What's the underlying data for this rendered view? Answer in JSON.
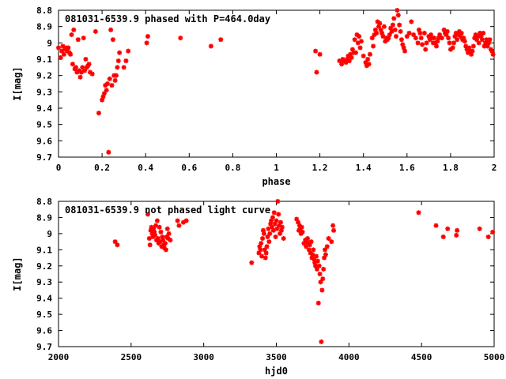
{
  "chart_data": [
    {
      "type": "scatter",
      "title": "081031-6539.9 phased with P=464.0day",
      "xlabel": "phase",
      "ylabel": "I[mag]",
      "xlim": [
        0,
        2
      ],
      "ylim": [
        8.8,
        9.7
      ],
      "y_inverted": true,
      "grid": false,
      "color": "#ff0000",
      "xticks": [
        "0",
        "0.2",
        "0.4",
        "0.6",
        "0.8",
        "1",
        "1.2",
        "1.4",
        "1.6",
        "1.8",
        "2"
      ],
      "xtick_values": [
        0,
        0.2,
        0.4,
        0.6,
        0.8,
        1.0,
        1.2,
        1.4,
        1.6,
        1.8,
        2.0
      ],
      "yticks": [
        "8.8",
        "8.9",
        "9",
        "9.1",
        "9.2",
        "9.3",
        "9.4",
        "9.5",
        "9.6",
        "9.7"
      ],
      "ytick_values": [
        8.8,
        8.9,
        9.0,
        9.1,
        9.2,
        9.3,
        9.4,
        9.5,
        9.6,
        9.7
      ],
      "points": [
        [
          0.0,
          9.03
        ],
        [
          0.01,
          9.09
        ],
        [
          0.015,
          9.05
        ],
        [
          0.02,
          9.02
        ],
        [
          0.025,
          9.07
        ],
        [
          0.03,
          9.04
        ],
        [
          0.035,
          9.03
        ],
        [
          0.04,
          9.05
        ],
        [
          0.045,
          9.03
        ],
        [
          0.05,
          9.06
        ],
        [
          0.055,
          9.07
        ],
        [
          0.06,
          8.95
        ],
        [
          0.065,
          9.13
        ],
        [
          0.07,
          8.92
        ],
        [
          0.075,
          9.16
        ],
        [
          0.08,
          9.15
        ],
        [
          0.085,
          9.18
        ],
        [
          0.09,
          8.98
        ],
        [
          0.095,
          9.17
        ],
        [
          0.1,
          9.21
        ],
        [
          0.105,
          9.18
        ],
        [
          0.11,
          9.15
        ],
        [
          0.115,
          8.97
        ],
        [
          0.12,
          9.17
        ],
        [
          0.125,
          9.1
        ],
        [
          0.13,
          9.15
        ],
        [
          0.135,
          9.14
        ],
        [
          0.14,
          9.13
        ],
        [
          0.145,
          9.18
        ],
        [
          0.155,
          9.19
        ],
        [
          0.17,
          8.93
        ],
        [
          0.185,
          9.43
        ],
        [
          0.2,
          9.35
        ],
        [
          0.205,
          9.33
        ],
        [
          0.21,
          9.31
        ],
        [
          0.215,
          9.26
        ],
        [
          0.22,
          9.29
        ],
        [
          0.225,
          9.25
        ],
        [
          0.23,
          9.67
        ],
        [
          0.235,
          9.22
        ],
        [
          0.24,
          8.92
        ],
        [
          0.245,
          9.26
        ],
        [
          0.25,
          8.98
        ],
        [
          0.255,
          9.2
        ],
        [
          0.26,
          9.23
        ],
        [
          0.265,
          9.2
        ],
        [
          0.27,
          9.15
        ],
        [
          0.275,
          9.11
        ],
        [
          0.28,
          9.06
        ],
        [
          0.3,
          9.15
        ],
        [
          0.31,
          9.11
        ],
        [
          0.32,
          9.05
        ],
        [
          0.405,
          9.0
        ],
        [
          0.41,
          8.96
        ],
        [
          0.56,
          8.97
        ],
        [
          0.7,
          9.02
        ],
        [
          0.745,
          8.98
        ],
        [
          1.18,
          9.05
        ],
        [
          1.185,
          9.18
        ],
        [
          1.2,
          9.07
        ],
        [
          1.29,
          9.11
        ],
        [
          1.3,
          9.13
        ],
        [
          1.305,
          9.1
        ],
        [
          1.31,
          9.11
        ],
        [
          1.32,
          9.12
        ],
        [
          1.325,
          9.1
        ],
        [
          1.33,
          9.08
        ],
        [
          1.335,
          9.11
        ],
        [
          1.34,
          9.07
        ],
        [
          1.345,
          9.09
        ],
        [
          1.35,
          9.04
        ],
        [
          1.355,
          9.06
        ],
        [
          1.36,
          8.98
        ],
        [
          1.365,
          9.06
        ],
        [
          1.37,
          8.95
        ],
        [
          1.375,
          9.0
        ],
        [
          1.38,
          8.96
        ],
        [
          1.385,
          9.03
        ],
        [
          1.39,
          8.99
        ],
        [
          1.4,
          9.08
        ],
        [
          1.41,
          9.12
        ],
        [
          1.415,
          9.14
        ],
        [
          1.42,
          9.1
        ],
        [
          1.425,
          9.13
        ],
        [
          1.43,
          9.07
        ],
        [
          1.44,
          8.97
        ],
        [
          1.445,
          9.02
        ],
        [
          1.45,
          8.95
        ],
        [
          1.455,
          8.92
        ],
        [
          1.46,
          8.94
        ],
        [
          1.465,
          8.87
        ],
        [
          1.47,
          8.9
        ],
        [
          1.475,
          8.88
        ],
        [
          1.48,
          8.92
        ],
        [
          1.485,
          8.94
        ],
        [
          1.49,
          8.96
        ],
        [
          1.495,
          8.9
        ],
        [
          1.5,
          8.99
        ],
        [
          1.505,
          8.97
        ],
        [
          1.51,
          8.98
        ],
        [
          1.515,
          8.97
        ],
        [
          1.52,
          8.95
        ],
        [
          1.525,
          8.91
        ],
        [
          1.53,
          8.93
        ],
        [
          1.535,
          8.89
        ],
        [
          1.54,
          8.85
        ],
        [
          1.545,
          8.92
        ],
        [
          1.55,
          8.96
        ],
        [
          1.555,
          8.8
        ],
        [
          1.56,
          8.83
        ],
        [
          1.565,
          8.89
        ],
        [
          1.57,
          8.93
        ],
        [
          1.575,
          8.98
        ],
        [
          1.58,
          9.01
        ],
        [
          1.585,
          9.03
        ],
        [
          1.59,
          9.05
        ],
        [
          1.6,
          8.96
        ],
        [
          1.61,
          8.94
        ],
        [
          1.62,
          8.87
        ],
        [
          1.63,
          8.95
        ],
        [
          1.64,
          8.97
        ],
        [
          1.65,
          9.0
        ],
        [
          1.655,
          8.92
        ],
        [
          1.66,
          8.94
        ],
        [
          1.665,
          8.97
        ],
        [
          1.67,
          9.01
        ],
        [
          1.68,
          8.94
        ],
        [
          1.685,
          9.04
        ],
        [
          1.69,
          9.0
        ],
        [
          1.7,
          8.96
        ],
        [
          1.705,
          8.98
        ],
        [
          1.71,
          8.95
        ],
        [
          1.715,
          8.97
        ],
        [
          1.72,
          9.0
        ],
        [
          1.725,
          8.97
        ],
        [
          1.73,
          9.0
        ],
        [
          1.735,
          9.02
        ],
        [
          1.74,
          8.99
        ],
        [
          1.745,
          8.97
        ],
        [
          1.75,
          8.95
        ],
        [
          1.76,
          8.97
        ],
        [
          1.77,
          8.92
        ],
        [
          1.775,
          8.94
        ],
        [
          1.78,
          8.95
        ],
        [
          1.785,
          8.93
        ],
        [
          1.79,
          8.97
        ],
        [
          1.795,
          9.0
        ],
        [
          1.8,
          9.04
        ],
        [
          1.81,
          9.03
        ],
        [
          1.815,
          9.0
        ],
        [
          1.82,
          8.96
        ],
        [
          1.825,
          8.94
        ],
        [
          1.83,
          8.98
        ],
        [
          1.835,
          8.95
        ],
        [
          1.84,
          8.93
        ],
        [
          1.845,
          8.96
        ],
        [
          1.85,
          8.94
        ],
        [
          1.855,
          8.98
        ],
        [
          1.86,
          8.97
        ],
        [
          1.865,
          8.99
        ],
        [
          1.87,
          9.02
        ],
        [
          1.875,
          9.04
        ],
        [
          1.88,
          9.06
        ],
        [
          1.885,
          9.03
        ],
        [
          1.89,
          9.05
        ],
        [
          1.895,
          9.07
        ],
        [
          1.9,
          9.05
        ],
        [
          1.905,
          9.02
        ],
        [
          1.91,
          8.97
        ],
        [
          1.915,
          8.95
        ],
        [
          1.92,
          8.98
        ],
        [
          1.925,
          8.96
        ],
        [
          1.93,
          9.0
        ],
        [
          1.935,
          8.94
        ],
        [
          1.94,
          8.96
        ],
        [
          1.945,
          8.98
        ],
        [
          1.95,
          8.94
        ],
        [
          1.955,
          9.02
        ],
        [
          1.96,
          9.0
        ],
        [
          1.965,
          8.98
        ],
        [
          1.97,
          9.02
        ],
        [
          1.975,
          9.0
        ],
        [
          1.98,
          8.98
        ],
        [
          1.985,
          9.04
        ],
        [
          1.99,
          9.05
        ],
        [
          1.995,
          9.07
        ]
      ]
    },
    {
      "type": "scatter",
      "title": "081031-6539.9 not phased light curve",
      "xlabel": "hjd0",
      "ylabel": "I[mag]",
      "xlim": [
        2000,
        5000
      ],
      "ylim": [
        8.8,
        9.7
      ],
      "y_inverted": true,
      "grid": false,
      "color": "#ff0000",
      "xticks": [
        "2000",
        "2500",
        "3000",
        "3500",
        "4000",
        "4500",
        "5000"
      ],
      "xtick_values": [
        2000,
        2500,
        3000,
        3500,
        4000,
        4500,
        5000
      ],
      "yticks": [
        "8.8",
        "8.9",
        "9",
        "9.1",
        "9.2",
        "9.3",
        "9.4",
        "9.5",
        "9.6",
        "9.7"
      ],
      "ytick_values": [
        8.8,
        8.9,
        9.0,
        9.1,
        9.2,
        9.3,
        9.4,
        9.5,
        9.6,
        9.7
      ],
      "points": [
        [
          2390,
          9.05
        ],
        [
          2405,
          9.07
        ],
        [
          2615,
          8.88
        ],
        [
          2625,
          9.03
        ],
        [
          2630,
          9.07
        ],
        [
          2635,
          8.98
        ],
        [
          2640,
          8.96
        ],
        [
          2645,
          9.0
        ],
        [
          2650,
          9.02
        ],
        [
          2655,
          8.97
        ],
        [
          2660,
          8.99
        ],
        [
          2665,
          9.01
        ],
        [
          2670,
          8.95
        ],
        [
          2675,
          9.04
        ],
        [
          2680,
          8.92
        ],
        [
          2685,
          9.03
        ],
        [
          2690,
          9.06
        ],
        [
          2695,
          8.96
        ],
        [
          2700,
          9.05
        ],
        [
          2705,
          8.99
        ],
        [
          2710,
          9.08
        ],
        [
          2715,
          9.02
        ],
        [
          2720,
          9.04
        ],
        [
          2725,
          9.07
        ],
        [
          2730,
          9.09
        ],
        [
          2735,
          9.06
        ],
        [
          2740,
          9.1
        ],
        [
          2745,
          9.02
        ],
        [
          2750,
          8.97
        ],
        [
          2755,
          9.03
        ],
        [
          2760,
          9.0
        ],
        [
          2770,
          9.04
        ],
        [
          2820,
          8.92
        ],
        [
          2830,
          8.95
        ],
        [
          2860,
          8.93
        ],
        [
          2880,
          8.92
        ],
        [
          3330,
          9.18
        ],
        [
          3380,
          9.12
        ],
        [
          3385,
          9.08
        ],
        [
          3390,
          9.1
        ],
        [
          3395,
          9.06
        ],
        [
          3400,
          9.14
        ],
        [
          3405,
          9.03
        ],
        [
          3410,
          8.98
        ],
        [
          3415,
          9.0
        ],
        [
          3420,
          9.1
        ],
        [
          3425,
          9.15
        ],
        [
          3430,
          9.12
        ],
        [
          3435,
          9.08
        ],
        [
          3440,
          9.02
        ],
        [
          3445,
          8.97
        ],
        [
          3450,
          9.05
        ],
        [
          3455,
          9.0
        ],
        [
          3460,
          8.94
        ],
        [
          3465,
          8.92
        ],
        [
          3470,
          8.96
        ],
        [
          3475,
          8.9
        ],
        [
          3480,
          8.98
        ],
        [
          3485,
          8.87
        ],
        [
          3490,
          8.94
        ],
        [
          3495,
          9.02
        ],
        [
          3500,
          8.92
        ],
        [
          3505,
          8.97
        ],
        [
          3510,
          8.8
        ],
        [
          3515,
          8.88
        ],
        [
          3520,
          8.95
        ],
        [
          3525,
          9.0
        ],
        [
          3530,
          8.93
        ],
        [
          3535,
          8.98
        ],
        [
          3540,
          8.96
        ],
        [
          3550,
          9.03
        ],
        [
          3640,
          8.91
        ],
        [
          3650,
          8.93
        ],
        [
          3655,
          8.98
        ],
        [
          3660,
          8.95
        ],
        [
          3665,
          8.97
        ],
        [
          3670,
          9.0
        ],
        [
          3675,
          8.96
        ],
        [
          3680,
          8.99
        ],
        [
          3690,
          9.06
        ],
        [
          3700,
          9.04
        ],
        [
          3705,
          9.08
        ],
        [
          3710,
          9.05
        ],
        [
          3715,
          9.03
        ],
        [
          3720,
          9.06
        ],
        [
          3725,
          9.1
        ],
        [
          3730,
          9.07
        ],
        [
          3735,
          9.12
        ],
        [
          3740,
          9.05
        ],
        [
          3745,
          9.15
        ],
        [
          3750,
          9.13
        ],
        [
          3755,
          9.1
        ],
        [
          3760,
          9.16
        ],
        [
          3765,
          9.18
        ],
        [
          3770,
          9.2
        ],
        [
          3775,
          9.14
        ],
        [
          3780,
          9.22
        ],
        [
          3785,
          9.17
        ],
        [
          3790,
          9.43
        ],
        [
          3795,
          9.2
        ],
        [
          3800,
          9.25
        ],
        [
          3805,
          9.3
        ],
        [
          3810,
          9.67
        ],
        [
          3815,
          9.35
        ],
        [
          3820,
          9.28
        ],
        [
          3825,
          9.22
        ],
        [
          3830,
          9.15
        ],
        [
          3835,
          9.1
        ],
        [
          3840,
          9.13
        ],
        [
          3850,
          9.08
        ],
        [
          3860,
          9.03
        ],
        [
          3880,
          9.05
        ],
        [
          3890,
          8.95
        ],
        [
          3895,
          8.98
        ],
        [
          4480,
          8.87
        ],
        [
          4600,
          8.95
        ],
        [
          4650,
          9.02
        ],
        [
          4680,
          8.97
        ],
        [
          4740,
          9.01
        ],
        [
          4745,
          8.98
        ],
        [
          4900,
          8.97
        ],
        [
          4960,
          9.02
        ],
        [
          4990,
          8.99
        ]
      ]
    }
  ]
}
